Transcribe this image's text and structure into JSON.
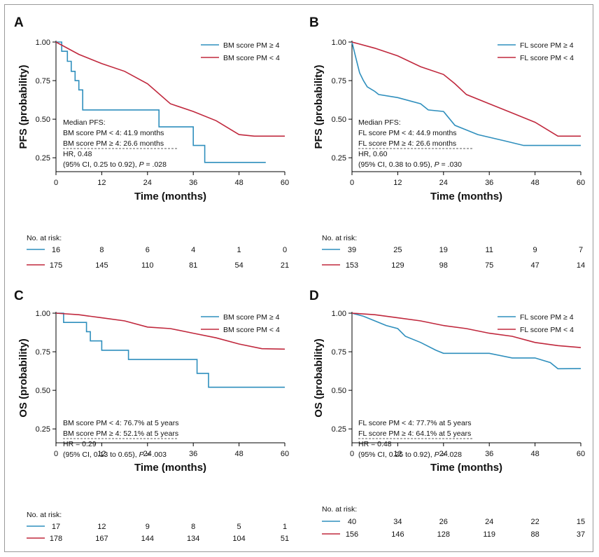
{
  "colors": {
    "blue": "#2f8fbd",
    "red": "#c0283d"
  },
  "chart_data": [
    {
      "panel": "A",
      "type": "line",
      "ylabel": "PFS (probability)",
      "xlabel": "Time (months)",
      "xlim": [
        0,
        60
      ],
      "ylim": [
        0.16,
        1.0
      ],
      "xticks": [
        "0",
        "12",
        "24",
        "36",
        "48",
        "60"
      ],
      "yticks": [
        "1.00",
        "0.75",
        "0.50",
        "0.25"
      ],
      "legend": [
        "BM score PM ≥ 4",
        "BM score PM < 4"
      ],
      "series": [
        {
          "name": "BM score PM ≥ 4",
          "color": "blue",
          "points": [
            [
              0,
              1.0
            ],
            [
              1.5,
              1.0
            ],
            [
              1.5,
              0.94
            ],
            [
              3,
              0.94
            ],
            [
              3,
              0.875
            ],
            [
              4,
              0.875
            ],
            [
              4,
              0.81
            ],
            [
              5,
              0.81
            ],
            [
              5,
              0.75
            ],
            [
              6,
              0.75
            ],
            [
              6,
              0.69
            ],
            [
              7,
              0.69
            ],
            [
              7,
              0.56
            ],
            [
              27,
              0.56
            ],
            [
              27,
              0.45
            ],
            [
              36,
              0.45
            ],
            [
              36,
              0.33
            ],
            [
              39,
              0.33
            ],
            [
              39,
              0.22
            ],
            [
              55,
              0.22
            ]
          ]
        },
        {
          "name": "BM score PM < 4",
          "color": "red",
          "points": [
            [
              0,
              1.0
            ],
            [
              6,
              0.92
            ],
            [
              12,
              0.86
            ],
            [
              18,
              0.81
            ],
            [
              24,
              0.73
            ],
            [
              30,
              0.6
            ],
            [
              36,
              0.55
            ],
            [
              42,
              0.49
            ],
            [
              48,
              0.4
            ],
            [
              52,
              0.39
            ],
            [
              60,
              0.39
            ]
          ]
        }
      ],
      "annotation_lines": [
        "Median PFS:",
        "BM score PM < 4: 41.9 months",
        "BM score PM ≥ 4: 26.6 months",
        "HR, 0.48",
        "(95% CI, 0.25 to 0.92), P = .028"
      ],
      "risk_title": "No. at risk:",
      "risk": [
        [
          "16",
          "8",
          "6",
          "4",
          "1",
          "0"
        ],
        [
          "175",
          "145",
          "110",
          "81",
          "54",
          "21"
        ]
      ]
    },
    {
      "panel": "B",
      "type": "line",
      "ylabel": "PFS (probability)",
      "xlabel": "Time (months)",
      "xlim": [
        0,
        60
      ],
      "ylim": [
        0.16,
        1.0
      ],
      "xticks": [
        "0",
        "12",
        "24",
        "36",
        "48",
        "60"
      ],
      "yticks": [
        "1.00",
        "0.75",
        "0.50",
        "0.25"
      ],
      "legend": [
        "FL score PM ≥ 4",
        "FL score PM < 4"
      ],
      "series": [
        {
          "name": "FL score PM ≥ 4",
          "color": "blue",
          "points": [
            [
              0,
              1.0
            ],
            [
              1,
              0.9
            ],
            [
              2,
              0.8
            ],
            [
              3,
              0.75
            ],
            [
              4,
              0.71
            ],
            [
              6,
              0.68
            ],
            [
              7,
              0.66
            ],
            [
              12,
              0.64
            ],
            [
              18,
              0.6
            ],
            [
              20,
              0.56
            ],
            [
              24,
              0.55
            ],
            [
              27,
              0.46
            ],
            [
              30,
              0.43
            ],
            [
              33,
              0.4
            ],
            [
              40,
              0.36
            ],
            [
              45,
              0.33
            ],
            [
              60,
              0.33
            ]
          ]
        },
        {
          "name": "FL score PM < 4",
          "color": "red",
          "points": [
            [
              0,
              1.0
            ],
            [
              6,
              0.96
            ],
            [
              12,
              0.91
            ],
            [
              18,
              0.84
            ],
            [
              24,
              0.79
            ],
            [
              27,
              0.73
            ],
            [
              30,
              0.66
            ],
            [
              36,
              0.6
            ],
            [
              42,
              0.54
            ],
            [
              48,
              0.48
            ],
            [
              54,
              0.39
            ],
            [
              60,
              0.39
            ]
          ]
        }
      ],
      "annotation_lines": [
        "Median PFS:",
        "FL score PM < 4: 44.9 months",
        "FL score PM ≥ 4: 26.6 months",
        "HR, 0.60",
        "(95% CI, 0.38 to 0.95), P = .030"
      ],
      "risk_title": "No. at risk:",
      "risk": [
        [
          "39",
          "25",
          "19",
          "11",
          "9",
          "7"
        ],
        [
          "153",
          "129",
          "98",
          "75",
          "47",
          "14"
        ]
      ]
    },
    {
      "panel": "C",
      "type": "line",
      "ylabel": "OS (probability)",
      "xlabel": "Time (months)",
      "xlim": [
        0,
        60
      ],
      "ylim": [
        0.16,
        1.0
      ],
      "xticks": [
        "0",
        "12",
        "24",
        "36",
        "48",
        "60"
      ],
      "yticks": [
        "1.00",
        "0.75",
        "0.50",
        "0.25"
      ],
      "legend": [
        "BM score PM ≥ 4",
        "BM score PM < 4"
      ],
      "series": [
        {
          "name": "BM score PM ≥ 4",
          "color": "blue",
          "points": [
            [
              0,
              1.0
            ],
            [
              2,
              1.0
            ],
            [
              2,
              0.94
            ],
            [
              8,
              0.94
            ],
            [
              8,
              0.88
            ],
            [
              9,
              0.88
            ],
            [
              9,
              0.82
            ],
            [
              12,
              0.82
            ],
            [
              12,
              0.76
            ],
            [
              19,
              0.76
            ],
            [
              19,
              0.7
            ],
            [
              37,
              0.7
            ],
            [
              37,
              0.61
            ],
            [
              40,
              0.61
            ],
            [
              40,
              0.52
            ],
            [
              60,
              0.52
            ]
          ]
        },
        {
          "name": "BM score PM < 4",
          "color": "red",
          "points": [
            [
              0,
              1.0
            ],
            [
              6,
              0.99
            ],
            [
              12,
              0.97
            ],
            [
              18,
              0.95
            ],
            [
              24,
              0.91
            ],
            [
              30,
              0.9
            ],
            [
              36,
              0.87
            ],
            [
              42,
              0.84
            ],
            [
              48,
              0.8
            ],
            [
              54,
              0.77
            ],
            [
              60,
              0.767
            ]
          ]
        }
      ],
      "annotation_lines": [
        "BM score PM < 4: 76.7% at 5 years",
        "BM score PM ≥ 4: 52.1% at 5 years",
        "HR = 0.29",
        "(95% CI, 0.13 to 0.65), P = .003"
      ],
      "risk_title": "No. at risk:",
      "risk": [
        [
          "17",
          "12",
          "9",
          "8",
          "5",
          "1"
        ],
        [
          "178",
          "167",
          "144",
          "134",
          "104",
          "51"
        ]
      ]
    },
    {
      "panel": "D",
      "type": "line",
      "ylabel": "OS (probability)",
      "xlabel": "Time (months)",
      "xlim": [
        0,
        60
      ],
      "ylim": [
        0.16,
        1.0
      ],
      "xticks": [
        "0",
        "12",
        "24",
        "36",
        "48",
        "60"
      ],
      "yticks": [
        "1.00",
        "0.75",
        "0.50",
        "0.25"
      ],
      "legend": [
        "FL score PM ≥ 4",
        "FL score PM < 4"
      ],
      "series": [
        {
          "name": "FL score PM ≥ 4",
          "color": "blue",
          "points": [
            [
              0,
              1.0
            ],
            [
              3,
              0.98
            ],
            [
              6,
              0.95
            ],
            [
              9,
              0.92
            ],
            [
              12,
              0.9
            ],
            [
              14,
              0.85
            ],
            [
              18,
              0.81
            ],
            [
              22,
              0.76
            ],
            [
              24,
              0.74
            ],
            [
              36,
              0.74
            ],
            [
              42,
              0.71
            ],
            [
              48,
              0.71
            ],
            [
              52,
              0.68
            ],
            [
              54,
              0.64
            ],
            [
              60,
              0.641
            ]
          ]
        },
        {
          "name": "FL score PM < 4",
          "color": "red",
          "points": [
            [
              0,
              1.0
            ],
            [
              6,
              0.99
            ],
            [
              12,
              0.97
            ],
            [
              18,
              0.95
            ],
            [
              24,
              0.92
            ],
            [
              30,
              0.9
            ],
            [
              36,
              0.87
            ],
            [
              42,
              0.85
            ],
            [
              48,
              0.81
            ],
            [
              54,
              0.79
            ],
            [
              60,
              0.777
            ]
          ]
        }
      ],
      "annotation_lines": [
        "FL score PM < 4: 77.7% at 5 years",
        "FL score PM ≥ 4: 64.1% at 5 years",
        "HR = 0.48",
        "(95% CI, 0.25 to 0.92), P = .028"
      ],
      "risk_title": "No. at risk:",
      "risk": [
        [
          "40",
          "34",
          "26",
          "24",
          "22",
          "15"
        ],
        [
          "156",
          "146",
          "128",
          "119",
          "88",
          "37"
        ]
      ]
    }
  ]
}
